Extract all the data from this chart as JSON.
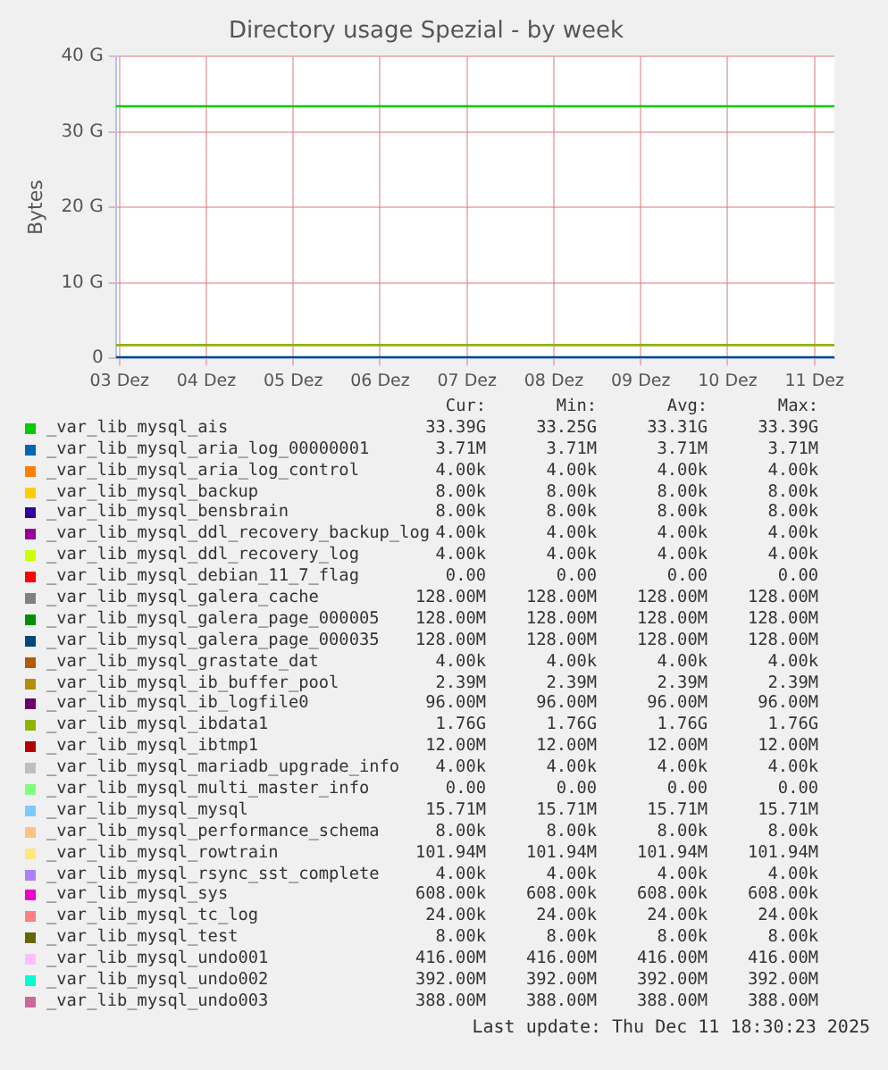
{
  "chart_data": {
    "type": "line",
    "title": "Directory usage Spezial - by week",
    "ylabel": "Bytes",
    "x": [
      "2025-12-03T11:00",
      "2025-12-11T17:30"
    ],
    "xlim": [
      "2025-12-03T11:00",
      "2025-12-11T17:30"
    ],
    "xticks": [
      {
        "value": "2025-12-03T12:00",
        "label": "03 Dez"
      },
      {
        "value": "2025-12-04T12:00",
        "label": "04 Dez"
      },
      {
        "value": "2025-12-05T12:00",
        "label": "05 Dez"
      },
      {
        "value": "2025-12-06T12:00",
        "label": "06 Dez"
      },
      {
        "value": "2025-12-07T12:00",
        "label": "07 Dez"
      },
      {
        "value": "2025-12-08T12:00",
        "label": "08 Dez"
      },
      {
        "value": "2025-12-09T12:00",
        "label": "09 Dez"
      },
      {
        "value": "2025-12-10T12:00",
        "label": "10 Dez"
      },
      {
        "value": "2025-12-11T12:00",
        "label": "11 Dez"
      }
    ],
    "ylim": [
      0,
      40
    ],
    "yticks": [
      0,
      {
        "value": 10,
        "label": "10 G"
      },
      {
        "value": 20,
        "label": "20 G"
      },
      {
        "value": 30,
        "label": "30 G"
      },
      {
        "value": 40,
        "label": "40 G"
      }
    ],
    "grid": true,
    "legend": "bottom",
    "marker": "none",
    "series": [
      {
        "name": "_var_lib_mysql_ais",
        "color": "#00cc00",
        "type": "step",
        "x": [
          "2025-12-03T11:00",
          "2025-12-05T05:00",
          "2025-12-11T17:30"
        ],
        "values": [
          33.25,
          33.39,
          33.39
        ]
      },
      {
        "name": "_var_lib_mysql_aria_log_00000001",
        "color": "#0066b3",
        "values": [
          null,
          null
        ]
      },
      {
        "name": "_var_lib_mysql_aria_log_control",
        "color": "#ff8000",
        "values": [
          null,
          null
        ]
      },
      {
        "name": "_var_lib_mysql_backup",
        "color": "#ffcc00",
        "values": [
          null,
          null
        ]
      },
      {
        "name": "_var_lib_mysql_bensbrain",
        "color": "#330099",
        "values": [
          null,
          null
        ]
      },
      {
        "name": "_var_lib_mysql_ddl_recovery_backup_log",
        "color": "#990099",
        "values": [
          null,
          null
        ]
      },
      {
        "name": "_var_lib_mysql_ddl_recovery_log",
        "color": "#ccff00",
        "values": [
          null,
          null
        ]
      },
      {
        "name": "_var_lib_mysql_debian_11_7_flag",
        "color": "#ff0000",
        "values": [
          null,
          null
        ]
      },
      {
        "name": "_var_lib_mysql_galera_cache",
        "color": "#808080",
        "values": [
          null,
          null
        ]
      },
      {
        "name": "_var_lib_mysql_galera_page_000005",
        "color": "#008f00",
        "values": [
          null,
          null
        ]
      },
      {
        "name": "_var_lib_mysql_galera_page_000035",
        "color": "#00487d",
        "values": [
          0.128,
          0.128
        ]
      },
      {
        "name": "_var_lib_mysql_grastate_dat",
        "color": "#b35a00",
        "values": [
          null,
          null
        ]
      },
      {
        "name": "_var_lib_mysql_ib_buffer_pool",
        "color": "#b38f00",
        "values": [
          null,
          null
        ]
      },
      {
        "name": "_var_lib_mysql_ib_logfile0",
        "color": "#6b006b",
        "values": [
          null,
          null
        ]
      },
      {
        "name": "_var_lib_mysql_ibdata1",
        "color": "#8fb300",
        "values": [
          1.76,
          1.76
        ]
      },
      {
        "name": "_var_lib_mysql_ibtmp1",
        "color": "#b30000",
        "values": [
          null,
          null
        ]
      },
      {
        "name": "_var_lib_mysql_mariadb_upgrade_info",
        "color": "#bebebe",
        "values": [
          null,
          null
        ]
      },
      {
        "name": "_var_lib_mysql_multi_master_info",
        "color": "#80ff80",
        "values": [
          null,
          null
        ]
      },
      {
        "name": "_var_lib_mysql_mysql",
        "color": "#80c9ff",
        "values": [
          null,
          null
        ]
      },
      {
        "name": "_var_lib_mysql_performance_schema",
        "color": "#ffc080",
        "values": [
          null,
          null
        ]
      },
      {
        "name": "_var_lib_mysql_rowtrain",
        "color": "#ffe680",
        "values": [
          null,
          null
        ]
      },
      {
        "name": "_var_lib_mysql_rsync_sst_complete",
        "color": "#aa80ff",
        "values": [
          null,
          null
        ]
      },
      {
        "name": "_var_lib_mysql_sys",
        "color": "#ee00cc",
        "values": [
          null,
          null
        ]
      },
      {
        "name": "_var_lib_mysql_tc_log",
        "color": "#ff8080",
        "values": [
          null,
          null
        ]
      },
      {
        "name": "_var_lib_mysql_test",
        "color": "#666600",
        "values": [
          null,
          null
        ]
      },
      {
        "name": "_var_lib_mysql_undo001",
        "color": "#ffbfff",
        "values": [
          null,
          null
        ]
      },
      {
        "name": "_var_lib_mysql_undo002",
        "color": "#00ffcc",
        "values": [
          null,
          null
        ]
      },
      {
        "name": "_var_lib_mysql_undo003",
        "color": "#cc6699",
        "values": [
          null,
          null
        ]
      }
    ],
    "annotations": [
      "Cur:",
      "Min:",
      "Avg:",
      "Max:",
      "33.39G",
      "33.25G",
      "33.31G",
      "33.39G",
      "3.71M",
      "3.71M",
      "3.71M",
      "3.71M",
      "4.00k",
      "4.00k",
      "4.00k",
      "4.00k",
      "8.00k",
      "8.00k",
      "8.00k",
      "8.00k",
      "8.00k",
      "8.00k",
      "8.00k",
      "8.00k",
      "4.00k",
      "4.00k",
      "4.00k",
      "4.00k",
      "4.00k",
      "4.00k",
      "4.00k",
      "4.00k",
      "0.00",
      "0.00",
      "0.00",
      "0.00",
      "128.00M",
      "128.00M",
      "128.00M",
      "128.00M",
      "128.00M",
      "128.00M",
      "128.00M",
      "128.00M",
      "128.00M",
      "128.00M",
      "128.00M",
      "128.00M",
      "4.00k",
      "4.00k",
      "4.00k",
      "4.00k",
      "2.39M",
      "2.39M",
      "2.39M",
      "2.39M",
      "96.00M",
      "96.00M",
      "96.00M",
      "96.00M",
      "1.76G",
      "1.76G",
      "1.76G",
      "1.76G",
      "12.00M",
      "12.00M",
      "12.00M",
      "12.00M",
      "4.00k",
      "4.00k",
      "4.00k",
      "4.00k",
      "0.00",
      "0.00",
      "0.00",
      "0.00",
      "15.71M",
      "15.71M",
      "15.71M",
      "15.71M",
      "8.00k",
      "8.00k",
      "8.00k",
      "8.00k",
      "101.94M",
      "101.94M",
      "101.94M",
      "101.94M",
      "4.00k",
      "4.00k",
      "4.00k",
      "4.00k",
      "608.00k",
      "608.00k",
      "608.00k",
      "608.00k",
      "24.00k",
      "24.00k",
      "24.00k",
      "24.00k",
      "8.00k",
      "8.00k",
      "8.00k",
      "8.00k",
      "416.00M",
      "416.00M",
      "416.00M",
      "416.00M",
      "392.00M",
      "392.00M",
      "392.00M",
      "392.00M",
      "388.00M",
      "388.00M",
      "388.00M",
      "388.00M",
      "Last update: Thu Dec 11 18:30:23 2025"
    ]
  }
}
